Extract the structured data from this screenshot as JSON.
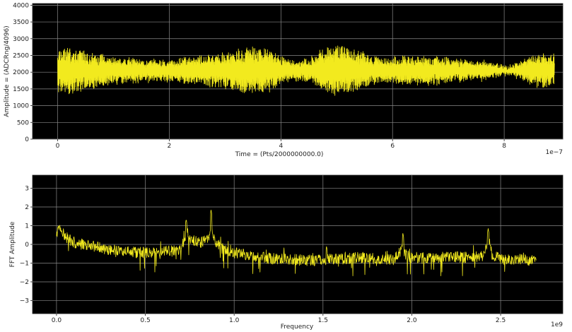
{
  "colors": {
    "background": "#000000",
    "trace": "#f2ea1e",
    "grid": "#8a8a8a"
  },
  "chart_data": [
    {
      "type": "line",
      "title": "",
      "xlabel": "Time = (Pts/2000000000.0)",
      "ylabel": "Amplitude = (ADCRng/4096)",
      "x_offset_label": "1e−7",
      "xlim": [
        -0.45,
        9.05
      ],
      "ylim": [
        0,
        4050
      ],
      "xticks": [
        0,
        2,
        4,
        6,
        8
      ],
      "xtick_labels": [
        "0",
        "2",
        "4",
        "6",
        "8"
      ],
      "yticks": [
        0,
        500,
        1000,
        1500,
        2000,
        2500,
        3000,
        3500,
        4000
      ],
      "ytick_labels": [
        "0",
        "500",
        "1000",
        "1500",
        "2000",
        "2500",
        "3000",
        "3500",
        "4000"
      ],
      "grid": true,
      "series": [
        {
          "x_range": [
            0,
            8.9
          ],
          "center": 2050,
          "envelope": [
            [
              0.0,
              650
            ],
            [
              0.2,
              700
            ],
            [
              0.5,
              560
            ],
            [
              0.8,
              450
            ],
            [
              1.0,
              380
            ],
            [
              1.2,
              360
            ],
            [
              1.5,
              340
            ],
            [
              1.8,
              320
            ],
            [
              2.0,
              300
            ],
            [
              2.2,
              340
            ],
            [
              2.5,
              420
            ],
            [
              2.8,
              480
            ],
            [
              3.0,
              520
            ],
            [
              3.3,
              620
            ],
            [
              3.5,
              700
            ],
            [
              3.7,
              640
            ],
            [
              3.9,
              560
            ],
            [
              4.1,
              320
            ],
            [
              4.3,
              280
            ],
            [
              4.5,
              320
            ],
            [
              4.7,
              600
            ],
            [
              5.0,
              720
            ],
            [
              5.2,
              680
            ],
            [
              5.4,
              560
            ],
            [
              5.6,
              430
            ],
            [
              5.8,
              380
            ],
            [
              6.0,
              360
            ],
            [
              6.2,
              400
            ],
            [
              6.5,
              420
            ],
            [
              6.8,
              400
            ],
            [
              7.0,
              350
            ],
            [
              7.3,
              300
            ],
            [
              7.6,
              280
            ],
            [
              7.9,
              150
            ],
            [
              8.1,
              120
            ],
            [
              8.3,
              250
            ],
            [
              8.5,
              420
            ],
            [
              8.7,
              500
            ],
            [
              8.9,
              450
            ]
          ]
        }
      ]
    },
    {
      "type": "line",
      "title": "",
      "xlabel": "Frequency",
      "ylabel": "FFT Amplitude",
      "x_offset_label": "1e9",
      "xlim": [
        -0.135,
        2.85
      ],
      "ylim": [
        -3.7,
        3.7
      ],
      "xticks": [
        0.0,
        0.5,
        1.0,
        1.5,
        2.0,
        2.5
      ],
      "xtick_labels": [
        "0.0",
        "0.5",
        "1.0",
        "1.5",
        "2.0",
        "2.5"
      ],
      "yticks": [
        -3,
        -2,
        -1,
        0,
        1,
        2,
        3
      ],
      "ytick_labels": [
        "−3",
        "−2",
        "−1",
        "0",
        "1",
        "2",
        "3"
      ],
      "grid": true,
      "series": [
        {
          "x_range": [
            0,
            2.7
          ],
          "baseline": [
            [
              0.0,
              0.6
            ],
            [
              0.02,
              0.8
            ],
            [
              0.05,
              0.4
            ],
            [
              0.1,
              0.1
            ],
            [
              0.2,
              -0.1
            ],
            [
              0.3,
              -0.3
            ],
            [
              0.4,
              -0.4
            ],
            [
              0.5,
              -0.45
            ],
            [
              0.6,
              -0.4
            ],
            [
              0.7,
              -0.3
            ],
            [
              0.73,
              0.6
            ],
            [
              0.75,
              0.3
            ],
            [
              0.8,
              0.1
            ],
            [
              0.85,
              0.2
            ],
            [
              0.87,
              0.9
            ],
            [
              0.9,
              0.0
            ],
            [
              1.0,
              -0.45
            ],
            [
              1.1,
              -0.6
            ],
            [
              1.2,
              -0.75
            ],
            [
              1.3,
              -0.8
            ],
            [
              1.4,
              -0.85
            ],
            [
              1.5,
              -0.8
            ],
            [
              1.6,
              -0.8
            ],
            [
              1.7,
              -0.7
            ],
            [
              1.8,
              -0.75
            ],
            [
              1.9,
              -0.8
            ],
            [
              1.95,
              -0.2
            ],
            [
              1.97,
              -0.6
            ],
            [
              2.0,
              -0.7
            ],
            [
              2.1,
              -0.75
            ],
            [
              2.2,
              -0.65
            ],
            [
              2.3,
              -0.7
            ],
            [
              2.4,
              -0.6
            ],
            [
              2.43,
              0.3
            ],
            [
              2.45,
              -0.5
            ],
            [
              2.5,
              -0.8
            ],
            [
              2.6,
              -0.8
            ],
            [
              2.7,
              -0.9
            ]
          ],
          "noise": 0.3,
          "peaks": [
            {
              "x": 0.73,
              "y": 1.35
            },
            {
              "x": 0.87,
              "y": 1.85
            },
            {
              "x": 1.95,
              "y": 0.6
            },
            {
              "x": 2.43,
              "y": 0.85
            },
            {
              "x": 0.01,
              "y": 1.0
            },
            {
              "x": 1.52,
              "y": -0.1
            }
          ]
        }
      ]
    }
  ]
}
